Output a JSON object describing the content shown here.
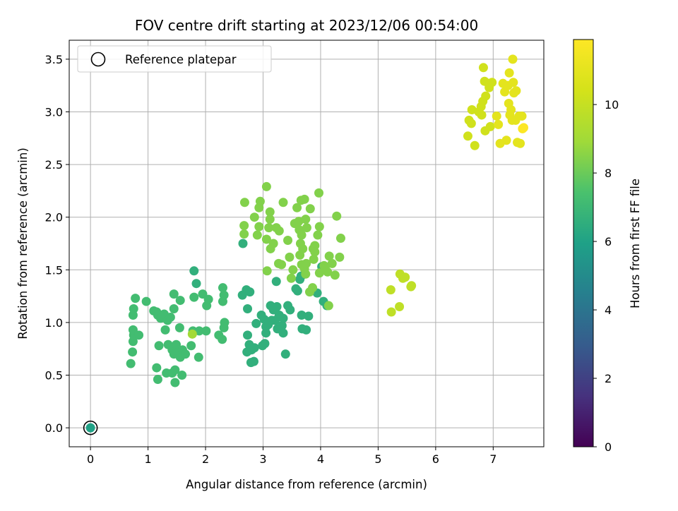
{
  "chart_data": {
    "type": "scatter",
    "title": "FOV centre drift starting at 2023/12/06 00:54:00",
    "xlabel": "Angular distance from reference (arcmin)",
    "ylabel": "Rotation from reference (arcmin)",
    "xlim": [
      -0.37,
      7.88
    ],
    "ylim": [
      -0.18,
      3.68
    ],
    "xticks": [
      "0",
      "1",
      "2",
      "3",
      "4",
      "5",
      "6",
      "7"
    ],
    "yticks": [
      "0.0",
      "0.5",
      "1.0",
      "1.5",
      "2.0",
      "2.5",
      "3.0",
      "3.5"
    ],
    "grid": true,
    "legend": {
      "placement": "top-left",
      "entries": [
        "Reference platepar"
      ]
    },
    "reference_point": {
      "x": 0,
      "y": 0,
      "hours": 6.0,
      "marker": "open-circle"
    },
    "colorbar": {
      "label": "Hours from first FF file",
      "colormap": "viridis",
      "range": [
        0,
        11.9
      ],
      "ticks": [
        "0",
        "2",
        "4",
        "6",
        "8",
        "10"
      ]
    },
    "points": [
      {
        "x": 0.7,
        "y": 0.61,
        "hours": 7.2
      },
      {
        "x": 0.73,
        "y": 0.72,
        "hours": 7.2
      },
      {
        "x": 0.74,
        "y": 0.82,
        "hours": 7.2
      },
      {
        "x": 0.75,
        "y": 0.88,
        "hours": 7.2
      },
      {
        "x": 0.74,
        "y": 0.93,
        "hours": 7.2
      },
      {
        "x": 0.84,
        "y": 0.88,
        "hours": 7.2
      },
      {
        "x": 0.74,
        "y": 1.07,
        "hours": 7.2
      },
      {
        "x": 0.75,
        "y": 1.13,
        "hours": 7.2
      },
      {
        "x": 0.78,
        "y": 1.23,
        "hours": 7.2
      },
      {
        "x": 0.97,
        "y": 1.2,
        "hours": 7.2
      },
      {
        "x": 1.1,
        "y": 1.11,
        "hours": 7.2
      },
      {
        "x": 1.15,
        "y": 1.1,
        "hours": 7.2
      },
      {
        "x": 1.17,
        "y": 1.07,
        "hours": 7.2
      },
      {
        "x": 1.22,
        "y": 1.04,
        "hours": 7.2
      },
      {
        "x": 1.28,
        "y": 1.08,
        "hours": 7.2
      },
      {
        "x": 1.34,
        "y": 1.02,
        "hours": 7.2
      },
      {
        "x": 1.39,
        "y": 1.05,
        "hours": 7.2
      },
      {
        "x": 1.3,
        "y": 0.93,
        "hours": 7.2
      },
      {
        "x": 1.45,
        "y": 1.13,
        "hours": 7.2
      },
      {
        "x": 1.45,
        "y": 1.27,
        "hours": 7.2
      },
      {
        "x": 1.56,
        "y": 1.21,
        "hours": 7.2
      },
      {
        "x": 1.19,
        "y": 0.78,
        "hours": 7.2
      },
      {
        "x": 1.35,
        "y": 0.79,
        "hours": 7.2
      },
      {
        "x": 1.42,
        "y": 0.74,
        "hours": 7.2
      },
      {
        "x": 1.45,
        "y": 0.7,
        "hours": 7.2
      },
      {
        "x": 1.49,
        "y": 0.79,
        "hours": 7.2
      },
      {
        "x": 1.53,
        "y": 0.72,
        "hours": 7.2
      },
      {
        "x": 1.56,
        "y": 0.67,
        "hours": 7.2
      },
      {
        "x": 1.6,
        "y": 0.74,
        "hours": 7.2
      },
      {
        "x": 1.65,
        "y": 0.7,
        "hours": 7.2
      },
      {
        "x": 1.55,
        "y": 0.95,
        "hours": 7.2
      },
      {
        "x": 1.15,
        "y": 0.57,
        "hours": 7.2
      },
      {
        "x": 1.17,
        "y": 0.46,
        "hours": 7.2
      },
      {
        "x": 1.32,
        "y": 0.52,
        "hours": 7.2
      },
      {
        "x": 1.42,
        "y": 0.52,
        "hours": 7.2
      },
      {
        "x": 1.47,
        "y": 0.55,
        "hours": 7.2
      },
      {
        "x": 1.47,
        "y": 0.43,
        "hours": 7.2
      },
      {
        "x": 1.59,
        "y": 0.5,
        "hours": 7.2
      },
      {
        "x": 1.75,
        "y": 0.78,
        "hours": 7.2
      },
      {
        "x": 1.78,
        "y": 0.92,
        "hours": 7.2
      },
      {
        "x": 1.89,
        "y": 0.92,
        "hours": 7.2
      },
      {
        "x": 1.88,
        "y": 0.67,
        "hours": 7.2
      },
      {
        "x": 1.8,
        "y": 1.24,
        "hours": 7.2
      },
      {
        "x": 1.95,
        "y": 1.27,
        "hours": 7.2
      },
      {
        "x": 2.02,
        "y": 1.16,
        "hours": 7.2
      },
      {
        "x": 2.05,
        "y": 1.22,
        "hours": 7.2
      },
      {
        "x": 2.01,
        "y": 0.92,
        "hours": 7.2
      },
      {
        "x": 2.23,
        "y": 0.88,
        "hours": 7.2
      },
      {
        "x": 2.29,
        "y": 0.84,
        "hours": 7.2
      },
      {
        "x": 2.32,
        "y": 0.95,
        "hours": 7.2
      },
      {
        "x": 2.33,
        "y": 1.0,
        "hours": 7.2
      },
      {
        "x": 2.3,
        "y": 1.2,
        "hours": 7.2
      },
      {
        "x": 2.32,
        "y": 1.26,
        "hours": 7.2
      },
      {
        "x": 2.3,
        "y": 1.33,
        "hours": 7.2
      },
      {
        "x": 1.77,
        "y": 0.89,
        "hours": 9.0
      },
      {
        "x": 1.8,
        "y": 1.49,
        "hours": 6.6
      },
      {
        "x": 1.84,
        "y": 1.37,
        "hours": 6.6
      },
      {
        "x": 2.64,
        "y": 1.26,
        "hours": 6.6
      },
      {
        "x": 2.71,
        "y": 1.31,
        "hours": 6.6
      },
      {
        "x": 2.77,
        "y": 1.29,
        "hours": 6.6
      },
      {
        "x": 2.73,
        "y": 1.13,
        "hours": 6.6
      },
      {
        "x": 2.73,
        "y": 0.88,
        "hours": 6.6
      },
      {
        "x": 2.76,
        "y": 0.79,
        "hours": 6.6
      },
      {
        "x": 2.72,
        "y": 0.72,
        "hours": 6.6
      },
      {
        "x": 2.8,
        "y": 0.74,
        "hours": 6.6
      },
      {
        "x": 2.85,
        "y": 0.76,
        "hours": 6.6
      },
      {
        "x": 2.79,
        "y": 0.62,
        "hours": 6.6
      },
      {
        "x": 2.84,
        "y": 0.63,
        "hours": 6.6
      },
      {
        "x": 2.99,
        "y": 0.78,
        "hours": 6.6
      },
      {
        "x": 3.03,
        "y": 0.8,
        "hours": 6.6
      },
      {
        "x": 3.05,
        "y": 0.9,
        "hours": 6.6
      },
      {
        "x": 2.88,
        "y": 0.99,
        "hours": 6.6
      },
      {
        "x": 2.97,
        "y": 1.07,
        "hours": 6.6
      },
      {
        "x": 3.02,
        "y": 1.03,
        "hours": 6.6
      },
      {
        "x": 3.05,
        "y": 0.96,
        "hours": 6.6
      },
      {
        "x": 3.09,
        "y": 0.98,
        "hours": 6.6
      },
      {
        "x": 3.15,
        "y": 1.02,
        "hours": 6.6
      },
      {
        "x": 3.13,
        "y": 1.16,
        "hours": 6.6
      },
      {
        "x": 3.18,
        "y": 1.12,
        "hours": 6.6
      },
      {
        "x": 3.24,
        "y": 1.15,
        "hours": 6.6
      },
      {
        "x": 3.21,
        "y": 1.02,
        "hours": 6.6
      },
      {
        "x": 3.25,
        "y": 0.94,
        "hours": 6.6
      },
      {
        "x": 3.33,
        "y": 0.97,
        "hours": 6.6
      },
      {
        "x": 3.35,
        "y": 1.04,
        "hours": 6.6
      },
      {
        "x": 3.28,
        "y": 1.07,
        "hours": 6.6
      },
      {
        "x": 3.23,
        "y": 1.39,
        "hours": 6.6
      },
      {
        "x": 3.47,
        "y": 1.12,
        "hours": 6.6
      },
      {
        "x": 3.43,
        "y": 1.16,
        "hours": 6.6
      },
      {
        "x": 3.35,
        "y": 0.9,
        "hours": 6.6
      },
      {
        "x": 3.57,
        "y": 1.32,
        "hours": 6.6
      },
      {
        "x": 3.6,
        "y": 1.3,
        "hours": 6.6
      },
      {
        "x": 3.64,
        "y": 1.41,
        "hours": 6.6
      },
      {
        "x": 3.66,
        "y": 1.44,
        "hours": 6.6
      },
      {
        "x": 3.67,
        "y": 1.07,
        "hours": 6.6
      },
      {
        "x": 3.79,
        "y": 1.06,
        "hours": 6.6
      },
      {
        "x": 3.68,
        "y": 0.94,
        "hours": 6.6
      },
      {
        "x": 3.75,
        "y": 0.93,
        "hours": 6.6
      },
      {
        "x": 3.39,
        "y": 0.7,
        "hours": 6.6
      },
      {
        "x": 3.94,
        "y": 1.28,
        "hours": 6.6
      },
      {
        "x": 4.02,
        "y": 1.53,
        "hours": 6.6
      },
      {
        "x": 4.05,
        "y": 1.2,
        "hours": 6.6
      },
      {
        "x": 4.11,
        "y": 1.16,
        "hours": 6.6
      },
      {
        "x": 2.65,
        "y": 1.75,
        "hours": 6.6
      },
      {
        "x": 0.0,
        "y": 0.0,
        "hours": 6.0
      },
      {
        "x": 2.67,
        "y": 1.84,
        "hours": 8.4
      },
      {
        "x": 2.67,
        "y": 1.92,
        "hours": 8.4
      },
      {
        "x": 2.68,
        "y": 2.14,
        "hours": 8.4
      },
      {
        "x": 2.85,
        "y": 2.0,
        "hours": 8.4
      },
      {
        "x": 2.93,
        "y": 2.09,
        "hours": 8.4
      },
      {
        "x": 2.95,
        "y": 2.15,
        "hours": 8.4
      },
      {
        "x": 2.93,
        "y": 1.91,
        "hours": 8.4
      },
      {
        "x": 2.9,
        "y": 1.83,
        "hours": 8.4
      },
      {
        "x": 3.06,
        "y": 2.29,
        "hours": 8.4
      },
      {
        "x": 3.12,
        "y": 2.05,
        "hours": 8.4
      },
      {
        "x": 3.12,
        "y": 1.98,
        "hours": 8.4
      },
      {
        "x": 3.1,
        "y": 1.9,
        "hours": 8.4
      },
      {
        "x": 3.06,
        "y": 1.79,
        "hours": 8.4
      },
      {
        "x": 3.13,
        "y": 1.7,
        "hours": 8.4
      },
      {
        "x": 3.18,
        "y": 1.75,
        "hours": 8.4
      },
      {
        "x": 3.23,
        "y": 1.9,
        "hours": 8.4
      },
      {
        "x": 3.28,
        "y": 1.87,
        "hours": 8.4
      },
      {
        "x": 3.35,
        "y": 2.14,
        "hours": 8.4
      },
      {
        "x": 3.43,
        "y": 1.78,
        "hours": 8.4
      },
      {
        "x": 3.27,
        "y": 1.56,
        "hours": 8.4
      },
      {
        "x": 3.32,
        "y": 1.55,
        "hours": 8.4
      },
      {
        "x": 3.07,
        "y": 1.49,
        "hours": 8.4
      },
      {
        "x": 3.46,
        "y": 1.62,
        "hours": 8.4
      },
      {
        "x": 3.52,
        "y": 1.5,
        "hours": 8.4
      },
      {
        "x": 3.49,
        "y": 1.42,
        "hours": 8.4
      },
      {
        "x": 3.55,
        "y": 1.94,
        "hours": 8.4
      },
      {
        "x": 3.59,
        "y": 2.09,
        "hours": 8.4
      },
      {
        "x": 3.62,
        "y": 1.96,
        "hours": 8.4
      },
      {
        "x": 3.63,
        "y": 1.88,
        "hours": 8.4
      },
      {
        "x": 3.67,
        "y": 1.83,
        "hours": 8.4
      },
      {
        "x": 3.65,
        "y": 1.75,
        "hours": 8.4
      },
      {
        "x": 3.69,
        "y": 1.7,
        "hours": 8.4
      },
      {
        "x": 3.64,
        "y": 1.64,
        "hours": 8.4
      },
      {
        "x": 3.67,
        "y": 1.55,
        "hours": 8.4
      },
      {
        "x": 3.72,
        "y": 1.51,
        "hours": 8.4
      },
      {
        "x": 3.75,
        "y": 1.56,
        "hours": 8.4
      },
      {
        "x": 3.74,
        "y": 1.46,
        "hours": 8.4
      },
      {
        "x": 3.66,
        "y": 2.16,
        "hours": 8.4
      },
      {
        "x": 3.72,
        "y": 2.17,
        "hours": 8.4
      },
      {
        "x": 3.74,
        "y": 1.98,
        "hours": 8.4
      },
      {
        "x": 3.76,
        "y": 1.9,
        "hours": 8.4
      },
      {
        "x": 3.82,
        "y": 2.08,
        "hours": 8.4
      },
      {
        "x": 3.87,
        "y": 1.7,
        "hours": 8.4
      },
      {
        "x": 3.88,
        "y": 1.6,
        "hours": 8.4
      },
      {
        "x": 3.9,
        "y": 1.73,
        "hours": 8.4
      },
      {
        "x": 3.9,
        "y": 1.67,
        "hours": 8.4
      },
      {
        "x": 3.95,
        "y": 1.83,
        "hours": 8.4
      },
      {
        "x": 3.98,
        "y": 1.91,
        "hours": 8.4
      },
      {
        "x": 3.97,
        "y": 2.23,
        "hours": 8.4
      },
      {
        "x": 3.81,
        "y": 1.29,
        "hours": 8.4
      },
      {
        "x": 3.86,
        "y": 1.33,
        "hours": 8.4
      },
      {
        "x": 3.98,
        "y": 1.47,
        "hours": 8.4
      },
      {
        "x": 4.06,
        "y": 1.54,
        "hours": 8.4
      },
      {
        "x": 4.08,
        "y": 1.51,
        "hours": 8.4
      },
      {
        "x": 4.12,
        "y": 1.48,
        "hours": 8.4
      },
      {
        "x": 4.15,
        "y": 1.63,
        "hours": 8.4
      },
      {
        "x": 4.2,
        "y": 1.56,
        "hours": 8.4
      },
      {
        "x": 4.25,
        "y": 1.45,
        "hours": 8.4
      },
      {
        "x": 4.28,
        "y": 2.01,
        "hours": 8.4
      },
      {
        "x": 4.35,
        "y": 1.8,
        "hours": 8.4
      },
      {
        "x": 4.33,
        "y": 1.62,
        "hours": 8.4
      },
      {
        "x": 4.14,
        "y": 1.16,
        "hours": 8.4
      },
      {
        "x": 5.22,
        "y": 1.31,
        "hours": 9.8
      },
      {
        "x": 5.23,
        "y": 1.1,
        "hours": 9.8
      },
      {
        "x": 5.37,
        "y": 1.15,
        "hours": 9.8
      },
      {
        "x": 5.38,
        "y": 1.46,
        "hours": 9.8
      },
      {
        "x": 5.43,
        "y": 1.42,
        "hours": 9.8
      },
      {
        "x": 5.47,
        "y": 1.43,
        "hours": 9.8
      },
      {
        "x": 5.57,
        "y": 1.34,
        "hours": 9.8
      },
      {
        "x": 5.58,
        "y": 1.35,
        "hours": 9.8
      },
      {
        "x": 6.56,
        "y": 2.77,
        "hours": 10.3
      },
      {
        "x": 6.58,
        "y": 2.92,
        "hours": 10.3
      },
      {
        "x": 6.62,
        "y": 2.89,
        "hours": 10.3
      },
      {
        "x": 6.63,
        "y": 3.02,
        "hours": 10.3
      },
      {
        "x": 6.68,
        "y": 2.68,
        "hours": 10.3
      },
      {
        "x": 6.75,
        "y": 3.0,
        "hours": 10.3
      },
      {
        "x": 6.79,
        "y": 3.05,
        "hours": 10.3
      },
      {
        "x": 6.82,
        "y": 3.1,
        "hours": 10.3
      },
      {
        "x": 6.8,
        "y": 2.97,
        "hours": 10.3
      },
      {
        "x": 6.83,
        "y": 3.42,
        "hours": 10.3
      },
      {
        "x": 6.85,
        "y": 3.29,
        "hours": 10.3
      },
      {
        "x": 6.86,
        "y": 2.82,
        "hours": 10.3
      },
      {
        "x": 6.87,
        "y": 3.15,
        "hours": 10.3
      },
      {
        "x": 6.92,
        "y": 3.27,
        "hours": 10.3
      },
      {
        "x": 6.93,
        "y": 3.23,
        "hours": 10.3
      },
      {
        "x": 6.95,
        "y": 2.86,
        "hours": 10.3
      },
      {
        "x": 6.98,
        "y": 3.28,
        "hours": 10.3
      },
      {
        "x": 7.06,
        "y": 2.96,
        "hours": 11.0
      },
      {
        "x": 7.09,
        "y": 2.88,
        "hours": 11.0
      },
      {
        "x": 7.12,
        "y": 2.7,
        "hours": 11.0
      },
      {
        "x": 7.17,
        "y": 3.27,
        "hours": 11.0
      },
      {
        "x": 7.2,
        "y": 3.19,
        "hours": 11.0
      },
      {
        "x": 7.23,
        "y": 2.73,
        "hours": 11.0
      },
      {
        "x": 7.26,
        "y": 3.25,
        "hours": 11.0
      },
      {
        "x": 7.27,
        "y": 3.08,
        "hours": 11.0
      },
      {
        "x": 7.28,
        "y": 3.37,
        "hours": 11.0
      },
      {
        "x": 7.31,
        "y": 3.02,
        "hours": 11.0
      },
      {
        "x": 7.29,
        "y": 2.97,
        "hours": 11.0
      },
      {
        "x": 7.33,
        "y": 2.92,
        "hours": 11.0
      },
      {
        "x": 7.34,
        "y": 3.5,
        "hours": 11.0
      },
      {
        "x": 7.35,
        "y": 3.28,
        "hours": 11.0
      },
      {
        "x": 7.36,
        "y": 3.18,
        "hours": 11.0
      },
      {
        "x": 7.39,
        "y": 2.92,
        "hours": 11.0
      },
      {
        "x": 7.4,
        "y": 3.2,
        "hours": 11.0
      },
      {
        "x": 7.42,
        "y": 2.71,
        "hours": 11.0
      },
      {
        "x": 7.45,
        "y": 2.96,
        "hours": 11.0
      },
      {
        "x": 7.47,
        "y": 2.7,
        "hours": 11.0
      },
      {
        "x": 7.5,
        "y": 2.96,
        "hours": 11.0
      },
      {
        "x": 7.51,
        "y": 2.84,
        "hours": 11.8
      },
      {
        "x": 7.53,
        "y": 2.85,
        "hours": 11.9
      }
    ]
  }
}
